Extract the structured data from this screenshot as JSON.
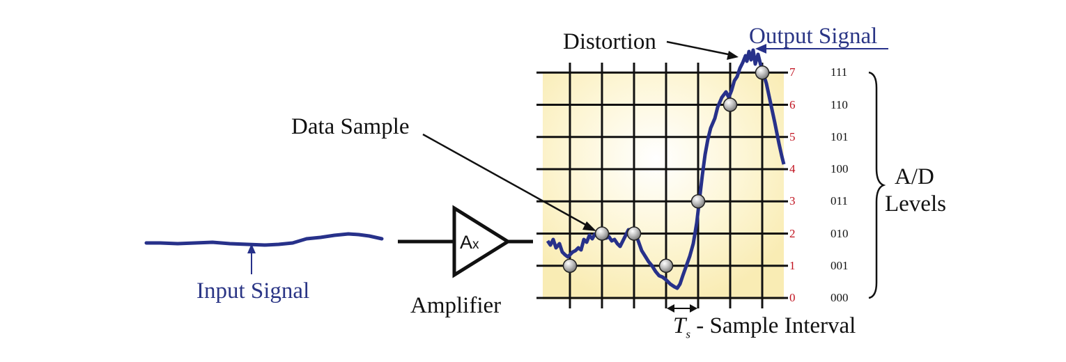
{
  "labels": {
    "input_signal": "Input Signal",
    "amplifier": "Amplifier",
    "amp_symbol_main": "A",
    "amp_symbol_sub": "x",
    "data_sample": "Data Sample",
    "distortion": "Distortion",
    "output_signal": "Output Signal",
    "ad_levels_line1": "A/D",
    "ad_levels_line2": "Levels",
    "ts_symbol": "T",
    "ts_subscript": "s",
    "ts_text": " - Sample Interval"
  },
  "levels": [
    {
      "value": "0",
      "binary": "000"
    },
    {
      "value": "1",
      "binary": "001"
    },
    {
      "value": "2",
      "binary": "010"
    },
    {
      "value": "3",
      "binary": "011"
    },
    {
      "value": "4",
      "binary": "100"
    },
    {
      "value": "5",
      "binary": "101"
    },
    {
      "value": "6",
      "binary": "110"
    },
    {
      "value": "7",
      "binary": "111"
    }
  ],
  "samples": [
    {
      "index": 1,
      "level": 1
    },
    {
      "index": 2,
      "level": 2
    },
    {
      "index": 3,
      "level": 2
    },
    {
      "index": 4,
      "level": 1
    },
    {
      "index": 5,
      "level": 3
    },
    {
      "index": 6,
      "level": 6
    },
    {
      "index": 7,
      "level": 7
    }
  ],
  "colors": {
    "signal": "#27318a",
    "grid": "#111111",
    "tick": "#c1121f",
    "sample_fill": "#b5b5b5"
  }
}
